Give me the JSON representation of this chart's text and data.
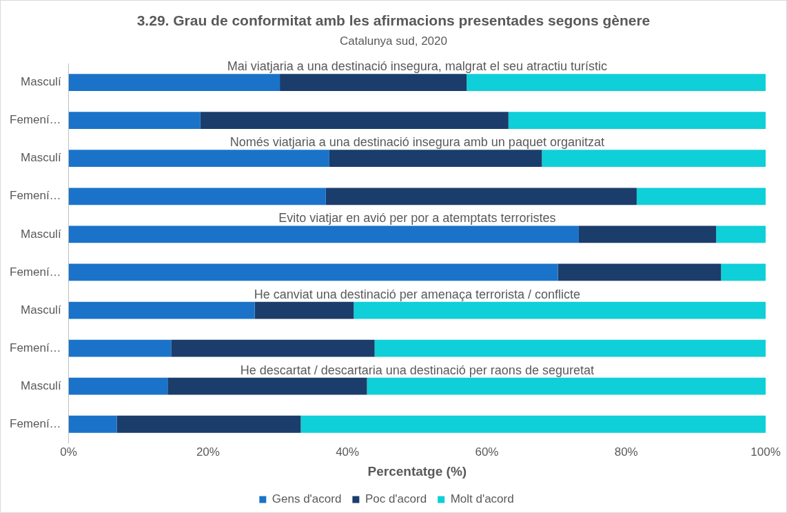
{
  "chart_data": {
    "type": "bar",
    "orientation": "horizontal",
    "stacked": true,
    "title": "3.29. Grau de conformitat amb les afirmacions presentades segons gènere",
    "subtitle": "Catalunya sud, 2020",
    "xlabel": "Percentatge (%)",
    "categories": [
      "Masculí",
      "Femení…",
      "Masculí",
      "Femení…",
      "Masculí",
      "Femení…",
      "Masculí",
      "Femení…",
      "Masculí",
      "Femení…"
    ],
    "series": [
      {
        "name": "Gens d'acord",
        "color": "#1a73c8",
        "values": [
          30.3,
          18.9,
          37.4,
          36.9,
          73.2,
          70.2,
          26.7,
          14.7,
          14.2,
          6.9
        ]
      },
      {
        "name": "Poc d'acord",
        "color": "#1b3d6b",
        "values": [
          26.8,
          44.2,
          30.5,
          44.6,
          19.7,
          23.4,
          14.2,
          29.2,
          28.6,
          26.4
        ]
      },
      {
        "name": "Molt d'acord",
        "color": "#0fcfd8",
        "values": [
          42.9,
          36.9,
          32.1,
          18.5,
          7.1,
          6.4,
          59.1,
          56.1,
          57.2,
          66.7
        ]
      }
    ],
    "annotations": [
      "Mai viatjaria a una destinació insegura, malgrat el seu atractiu turístic",
      "Només viatjaria a una destinació insegura amb un paquet organitzat",
      "Evito viatjar en avió per por a atemptats terroristes",
      "He canviat una destinació per amenaça terrorista / conflicte",
      "He descartat / descartaria una destinació per raons de seguretat"
    ],
    "xlim": [
      0,
      100
    ],
    "xticks": [
      {
        "value": 0,
        "label": "0%"
      },
      {
        "value": 20,
        "label": "20%"
      },
      {
        "value": 40,
        "label": "40%"
      },
      {
        "value": 60,
        "label": "60%"
      },
      {
        "value": 80,
        "label": "80%"
      },
      {
        "value": 100,
        "label": "100%"
      }
    ],
    "grid": false,
    "legend": "bottom"
  }
}
